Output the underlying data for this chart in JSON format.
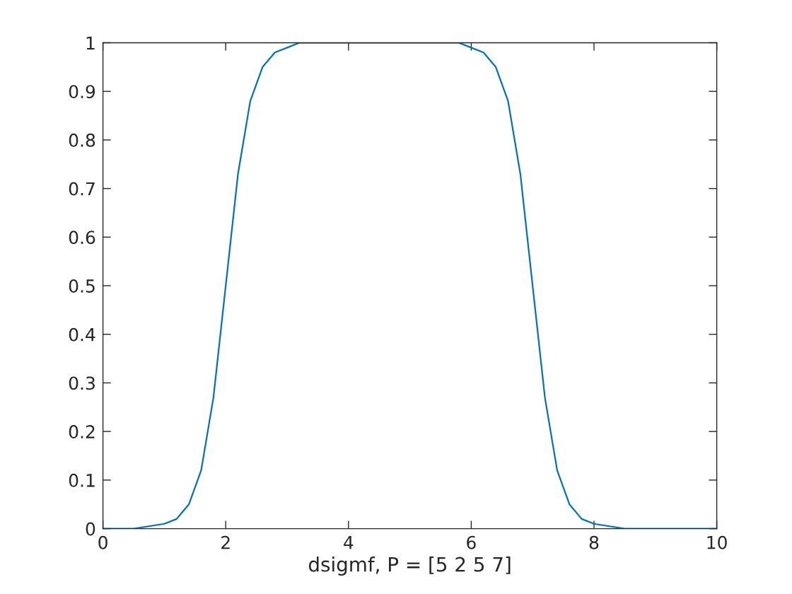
{
  "chart_data": {
    "type": "line",
    "xlabel": "dsigmf, P = [5 2 5 7]",
    "x": [
      0,
      0.5,
      1,
      1.2,
      1.4,
      1.6,
      1.8,
      2,
      2.2,
      2.4,
      2.6,
      2.8,
      3,
      3.2,
      3.5,
      4,
      5,
      5.8,
      6,
      6.2,
      6.4,
      6.6,
      6.8,
      7,
      7.2,
      7.4,
      7.6,
      7.8,
      8,
      8.5,
      9,
      10
    ],
    "series": [
      {
        "color": "#0072bd",
        "values": [
          0,
          0,
          0.01,
          0.02,
          0.05,
          0.12,
          0.27,
          0.5,
          0.73,
          0.88,
          0.95,
          0.98,
          0.99,
          1,
          1,
          1,
          1,
          1,
          0.99,
          0.98,
          0.95,
          0.88,
          0.73,
          0.5,
          0.27,
          0.12,
          0.05,
          0.02,
          0.01,
          0,
          0,
          0
        ]
      }
    ],
    "xlim": [
      0,
      10
    ],
    "ylim": [
      0,
      1
    ],
    "xticks": [
      0,
      2,
      4,
      6,
      8,
      10
    ],
    "yticks": [
      0,
      0.1,
      0.2,
      0.3,
      0.4,
      0.5,
      0.6,
      0.7,
      0.8,
      0.9,
      1
    ],
    "grid": false,
    "marker": "none",
    "line_style": "solid"
  }
}
